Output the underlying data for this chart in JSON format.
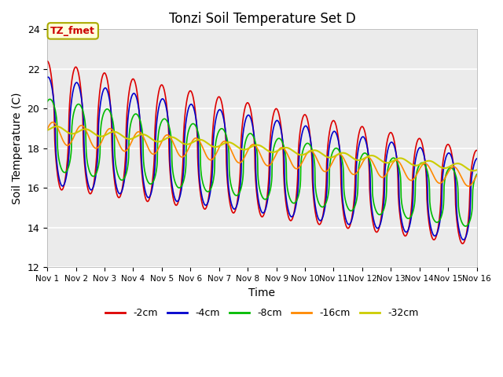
{
  "title": "Tonzi Soil Temperature Set D",
  "xlabel": "Time",
  "ylabel": "Soil Temperature (C)",
  "ylim": [
    12,
    24
  ],
  "xlim": [
    0,
    15
  ],
  "annotation_text": "TZ_fmet",
  "annotation_color": "#cc0000",
  "annotation_bg": "#ffffdd",
  "annotation_border": "#aaaa00",
  "xtick_labels": [
    "Nov 1",
    "Nov 2",
    "Nov 3",
    "Nov 4",
    "Nov 5",
    "Nov 6",
    "Nov 7",
    "Nov 8",
    "Nov 9",
    "Nov 10",
    "Nov 11",
    "Nov 12",
    "Nov 13",
    "Nov 14",
    "Nov 15",
    "Nov 16"
  ],
  "ytick_labels": [
    12,
    14,
    16,
    18,
    20,
    22,
    24
  ],
  "series": {
    "-2cm": {
      "color": "#dd0000",
      "lw": 1.2
    },
    "-4cm": {
      "color": "#0000cc",
      "lw": 1.2
    },
    "-8cm": {
      "color": "#00bb00",
      "lw": 1.2
    },
    "-16cm": {
      "color": "#ff8800",
      "lw": 1.2
    },
    "-32cm": {
      "color": "#cccc00",
      "lw": 1.5
    }
  },
  "legend_order": [
    "-2cm",
    "-4cm",
    "-8cm",
    "-16cm",
    "-32cm"
  ],
  "plot_bg": "#ebebeb",
  "fig_bg": "#ffffff",
  "grid_color": "#ffffff",
  "n_points": 1500
}
